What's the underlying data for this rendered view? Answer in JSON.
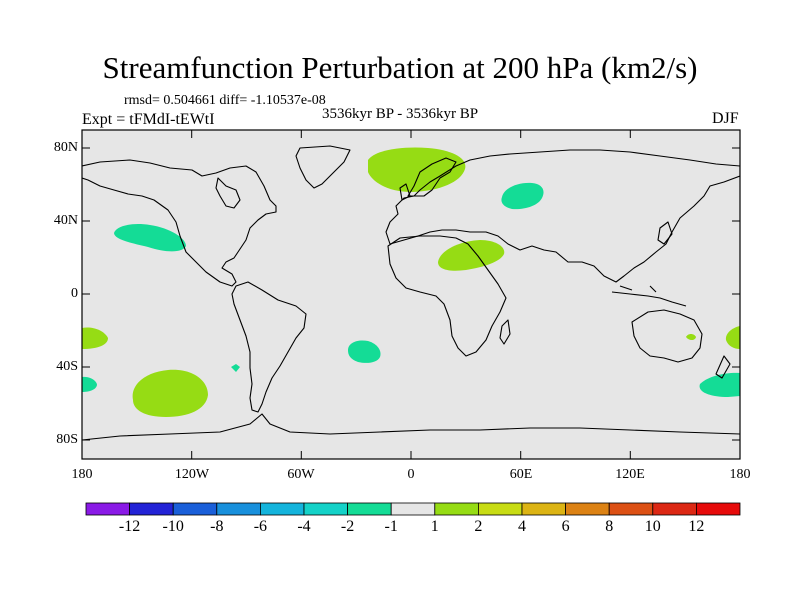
{
  "title": "Streamfunction Perturbation at 200 hPa (km2/s)",
  "stats_line": "rmsd= 0.504661 diff= -1.10537e-08",
  "period": "3536kyr BP - 3536kyr BP",
  "experiment": "Expt = tFMdI-tEWtI",
  "season": "DJF",
  "lat_ticks": [
    "80N",
    "40N",
    "0",
    "40S",
    "80S"
  ],
  "lon_ticks": [
    "180",
    "120W",
    "60W",
    "0",
    "60E",
    "120E",
    "180"
  ],
  "colorbar_labels": [
    "-12",
    "-10",
    "-8",
    "-6",
    "-4",
    "-2",
    "-1",
    "1",
    "2",
    "4",
    "6",
    "8",
    "10",
    "12"
  ],
  "colorbar_colors": [
    "#8a1ae6",
    "#2323d6",
    "#1a5fd9",
    "#1890dc",
    "#14b4dc",
    "#14d2c8",
    "#14dc96",
    "#e6e6e6",
    "#96dc14",
    "#c8dc14",
    "#dcb414",
    "#dc8214",
    "#dc5014",
    "#dc2814",
    "#e60a0a"
  ],
  "chart_data": {
    "type": "filled contour map",
    "projection": "cylindrical equidistant",
    "field": "Streamfunction perturbation at 200 hPa",
    "units": "km2/s",
    "lon_range": [
      -180,
      180
    ],
    "lat_range": [
      -90,
      90
    ],
    "levels": [
      -12,
      -10,
      -8,
      -6,
      -4,
      -2,
      -1,
      1,
      2,
      4,
      6,
      8,
      10,
      12
    ],
    "anomalies": [
      {
        "sign": "+",
        "range": "1 to 2",
        "lon": 20,
        "lat": 72,
        "region": "Scandinavia / Norwegian Sea"
      },
      {
        "sign": "-",
        "range": "-2 to -1",
        "lon": 62,
        "lat": 57,
        "region": "Western Siberia"
      },
      {
        "sign": "+",
        "range": "1 to 2",
        "lon": 33,
        "lat": 25,
        "region": "Egypt / Arabia"
      },
      {
        "sign": "-",
        "range": "-2 to -1",
        "lon": -147,
        "lat": 35,
        "region": "North Pacific"
      },
      {
        "sign": "+",
        "range": "1 to 2",
        "lon": -177,
        "lat": -30,
        "region": "South Pacific (west)"
      },
      {
        "sign": "+",
        "range": "1 to 2",
        "lon": 178,
        "lat": -27,
        "region": "South Pacific (east)"
      },
      {
        "sign": "-",
        "range": "-2 to -1",
        "lon": -175,
        "lat": -47,
        "region": "South Pacific"
      },
      {
        "sign": "-",
        "range": "-2 to -1",
        "lon": 170,
        "lat": -50,
        "region": "South of New Zealand"
      },
      {
        "sign": "+",
        "range": "1 to 2",
        "lon": -130,
        "lat": -55,
        "region": "Southeast Pacific"
      },
      {
        "sign": "-",
        "range": "-2 to -1",
        "lon": -27,
        "lat": -32,
        "region": "South Atlantic"
      },
      {
        "sign": "-",
        "range": "-2 to -1",
        "lon": -97,
        "lat": -40,
        "region": "Southeast Pacific (small)"
      },
      {
        "sign": "+",
        "range": "1 to 2",
        "lon": 153,
        "lat": -23,
        "region": "Coral Sea (small)"
      }
    ]
  }
}
